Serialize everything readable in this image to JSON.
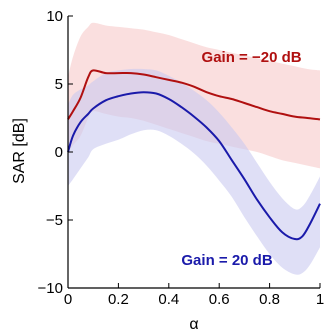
{
  "chart_data": {
    "type": "line",
    "title": "",
    "xlabel": "α",
    "ylabel": "SAR [dB]",
    "xlim": [
      0,
      1
    ],
    "ylim": [
      -10,
      10
    ],
    "xticks": [
      0,
      0.2,
      0.4,
      0.6,
      0.8,
      1
    ],
    "xtick_labels": [
      "0",
      "0.2",
      "0.4",
      "0.6",
      "0.8",
      "1"
    ],
    "yticks": [
      -10,
      -5,
      0,
      5,
      10
    ],
    "ytick_labels": [
      "−10",
      "−5",
      "0",
      "5",
      "10"
    ],
    "grid": false,
    "legend": "none",
    "series": [
      {
        "name": "Gain = −20 dB",
        "color": "#b01010",
        "band_color": "#f6c9c9",
        "x": [
          0,
          0.02,
          0.05,
          0.08,
          0.1,
          0.15,
          0.2,
          0.25,
          0.3,
          0.35,
          0.4,
          0.45,
          0.5,
          0.55,
          0.6,
          0.65,
          0.7,
          0.75,
          0.8,
          0.85,
          0.9,
          0.95,
          1.0
        ],
        "values": [
          2.4,
          3.0,
          4.0,
          5.5,
          6.0,
          5.8,
          5.8,
          5.8,
          5.7,
          5.5,
          5.3,
          5.1,
          4.8,
          4.4,
          4.1,
          3.9,
          3.6,
          3.3,
          3.0,
          2.8,
          2.6,
          2.5,
          2.4
        ],
        "band_upper": [
          5.5,
          7.0,
          8.5,
          9.2,
          9.5,
          9.3,
          9.2,
          9.1,
          9.0,
          8.8,
          8.6,
          8.3,
          8.0,
          7.7,
          7.5,
          7.3,
          7.1,
          6.9,
          6.7,
          6.5,
          6.3,
          6.1,
          6.0
        ],
        "band_lower": [
          0.0,
          0.5,
          1.2,
          2.5,
          3.0,
          2.8,
          2.6,
          2.5,
          2.3,
          2.0,
          1.7,
          1.4,
          1.1,
          0.8,
          0.6,
          0.4,
          0.2,
          0.0,
          -0.3,
          -0.6,
          -0.8,
          -1.0,
          -1.2
        ]
      },
      {
        "name": "Gain = 20 dB",
        "color": "#1a1aaa",
        "band_color": "#c9c9f0",
        "x": [
          0,
          0.02,
          0.05,
          0.08,
          0.1,
          0.15,
          0.2,
          0.25,
          0.3,
          0.35,
          0.4,
          0.45,
          0.5,
          0.55,
          0.6,
          0.65,
          0.7,
          0.75,
          0.8,
          0.85,
          0.9,
          0.93,
          0.96,
          1.0
        ],
        "values": [
          0.0,
          1.2,
          2.2,
          2.8,
          3.2,
          3.8,
          4.1,
          4.3,
          4.4,
          4.3,
          3.9,
          3.3,
          2.6,
          1.8,
          0.8,
          -0.6,
          -2.0,
          -3.5,
          -4.8,
          -5.9,
          -6.4,
          -6.2,
          -5.3,
          -3.8
        ],
        "band_upper": [
          3.5,
          4.2,
          4.6,
          4.9,
          5.2,
          5.8,
          6.0,
          6.1,
          6.1,
          6.0,
          5.6,
          5.1,
          4.5,
          3.8,
          2.9,
          1.8,
          0.6,
          -0.8,
          -2.2,
          -3.4,
          -4.2,
          -4.0,
          -3.2,
          -1.8
        ],
        "band_lower": [
          -2.5,
          -2.0,
          -1.2,
          -0.4,
          0.2,
          0.6,
          0.9,
          1.3,
          1.6,
          1.6,
          1.2,
          0.6,
          -0.1,
          -1.0,
          -2.1,
          -3.3,
          -4.8,
          -6.2,
          -7.5,
          -8.5,
          -9.0,
          -8.9,
          -8.3,
          -7.0
        ]
      }
    ],
    "annotations": [
      {
        "text": "Gain = −20 dB",
        "x": 0.53,
        "y": 6.6,
        "color": "#b01010"
      },
      {
        "text": "Gain = 20 dB",
        "x": 0.45,
        "y": -8.3,
        "color": "#1a1aaa"
      }
    ]
  }
}
